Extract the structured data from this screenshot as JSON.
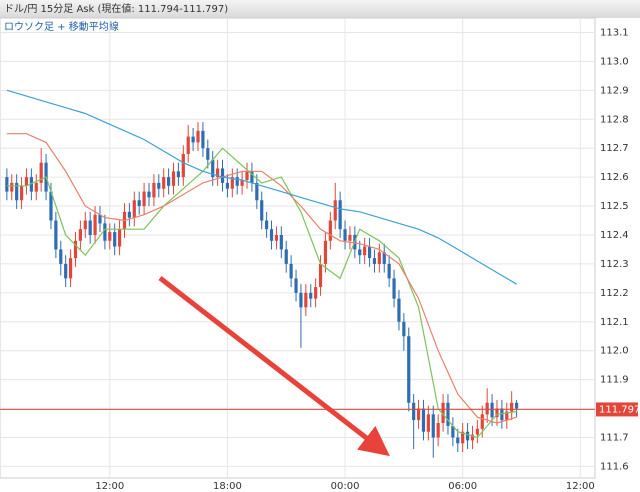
{
  "chart_data": {
    "type": "candlestick",
    "title": "ドル/円 15分足 Ask (現在値: 111.794-111.797)",
    "subtitle": "ロウソク足 + 移動平均線",
    "up_color": "#e0473a",
    "down_color": "#2e6db4",
    "xlim": [
      6.4,
      36.75
    ],
    "xticks": [
      {
        "value": 12,
        "label": "12:00"
      },
      {
        "value": 18,
        "label": "18:00"
      },
      {
        "value": 24,
        "label": "00:00"
      },
      {
        "value": 30,
        "label": "06:00"
      },
      {
        "value": 36,
        "label": "12:00"
      }
    ],
    "ylim": [
      111.56,
      113.15
    ],
    "yticks": [
      113.1,
      {
        "value": 113.0,
        "label": "113.0"
      },
      112.9,
      112.8,
      112.7,
      112.6,
      112.5,
      112.4,
      112.3,
      112.2,
      112.1,
      {
        "value": 112.0,
        "label": "112.0"
      },
      111.9,
      111.8,
      111.7,
      111.6
    ],
    "grid": true,
    "current": 111.797,
    "current_color": "#e0473a",
    "x": [
      6.75,
      7,
      7.25,
      7.5,
      7.75,
      8,
      8.25,
      8.5,
      8.75,
      9,
      9.25,
      9.5,
      9.75,
      10,
      10.25,
      10.5,
      10.75,
      11,
      11.25,
      11.5,
      11.75,
      12,
      12.25,
      12.5,
      12.75,
      13,
      13.25,
      13.5,
      13.75,
      14,
      14.25,
      14.5,
      14.75,
      15,
      15.25,
      15.5,
      15.75,
      16,
      16.25,
      16.5,
      16.75,
      17,
      17.25,
      17.5,
      17.75,
      18,
      18.25,
      18.5,
      18.75,
      19,
      19.25,
      19.5,
      19.75,
      20,
      20.25,
      20.5,
      20.75,
      21,
      21.25,
      21.5,
      21.75,
      22,
      22.25,
      22.5,
      22.75,
      23,
      23.25,
      23.5,
      23.75,
      24,
      24.25,
      24.5,
      24.75,
      25,
      25.25,
      25.5,
      25.75,
      26,
      26.25,
      26.5,
      26.75,
      27,
      27.25,
      27.5,
      27.75,
      28,
      28.25,
      28.5,
      28.75,
      29,
      29.25,
      29.5,
      29.75,
      30,
      30.25,
      30.5,
      30.75,
      31,
      31.25,
      31.5,
      31.75,
      32,
      32.25,
      32.5,
      32.75
    ],
    "open": [
      112.6,
      112.55,
      112.58,
      112.52,
      112.57,
      112.6,
      112.55,
      112.58,
      112.65,
      112.55,
      112.45,
      112.35,
      112.3,
      112.25,
      112.32,
      112.38,
      112.42,
      112.45,
      112.4,
      112.47,
      112.44,
      112.38,
      112.41,
      112.36,
      112.42,
      112.48,
      112.46,
      112.52,
      112.5,
      112.55,
      112.53,
      112.58,
      112.56,
      112.6,
      112.57,
      112.62,
      112.6,
      112.68,
      112.74,
      112.72,
      112.76,
      112.7,
      112.66,
      112.6,
      112.63,
      112.58,
      112.56,
      112.6,
      112.57,
      112.59,
      112.62,
      112.58,
      112.52,
      112.45,
      112.42,
      112.38,
      112.4,
      112.35,
      112.3,
      112.25,
      112.2,
      112.15,
      112.2,
      112.18,
      112.22,
      112.3,
      112.38,
      112.45,
      112.52,
      112.42,
      112.38,
      112.4,
      112.35,
      112.33,
      112.36,
      112.32,
      112.3,
      112.34,
      112.3,
      112.25,
      112.18,
      112.1,
      112.05,
      111.82,
      111.76,
      111.8,
      111.72,
      111.78,
      111.7,
      111.75,
      111.82,
      111.74,
      111.7,
      111.68,
      111.72,
      111.69,
      111.71,
      111.73,
      111.78,
      111.82,
      111.77,
      111.8,
      111.76,
      111.79,
      111.82
    ],
    "high": [
      112.63,
      112.61,
      112.61,
      112.6,
      112.63,
      112.63,
      112.61,
      112.7,
      112.68,
      112.58,
      112.48,
      112.38,
      112.33,
      112.35,
      112.41,
      112.45,
      112.48,
      112.48,
      112.5,
      112.5,
      112.47,
      112.44,
      112.44,
      112.45,
      112.51,
      112.51,
      112.55,
      112.55,
      112.58,
      112.58,
      112.61,
      112.61,
      112.63,
      112.63,
      112.65,
      112.65,
      112.71,
      112.78,
      112.77,
      112.79,
      112.79,
      112.73,
      112.69,
      112.66,
      112.66,
      112.61,
      112.63,
      112.63,
      112.62,
      112.65,
      112.65,
      112.61,
      112.55,
      112.48,
      112.45,
      112.43,
      112.43,
      112.38,
      112.33,
      112.28,
      112.23,
      112.23,
      112.23,
      112.25,
      112.33,
      112.41,
      112.48,
      112.58,
      112.55,
      112.45,
      112.43,
      112.43,
      112.38,
      112.39,
      112.39,
      112.35,
      112.37,
      112.37,
      112.33,
      112.28,
      112.21,
      112.13,
      112.08,
      111.85,
      111.83,
      111.83,
      111.81,
      111.81,
      111.78,
      111.85,
      111.85,
      111.77,
      111.73,
      111.75,
      111.75,
      111.74,
      111.76,
      111.81,
      111.87,
      111.85,
      111.83,
      111.83,
      111.82,
      111.86,
      111.83
    ],
    "low": [
      112.52,
      112.52,
      112.49,
      112.49,
      112.54,
      112.52,
      112.52,
      112.55,
      112.52,
      112.42,
      112.32,
      112.26,
      112.22,
      112.22,
      112.29,
      112.35,
      112.39,
      112.37,
      112.37,
      112.41,
      112.35,
      112.35,
      112.33,
      112.33,
      112.39,
      112.43,
      112.43,
      112.47,
      112.47,
      112.5,
      112.5,
      112.53,
      112.53,
      112.54,
      112.54,
      112.57,
      112.57,
      112.65,
      112.69,
      112.69,
      112.67,
      112.63,
      112.57,
      112.57,
      112.55,
      112.53,
      112.53,
      112.54,
      112.54,
      112.56,
      112.55,
      112.49,
      112.42,
      112.39,
      112.35,
      112.35,
      112.32,
      112.27,
      112.22,
      112.17,
      112.01,
      112.12,
      112.15,
      112.15,
      112.19,
      112.27,
      112.35,
      112.42,
      112.39,
      112.35,
      112.35,
      112.32,
      112.3,
      112.3,
      112.29,
      112.27,
      112.27,
      112.27,
      112.22,
      112.15,
      112.07,
      112.0,
      111.79,
      111.66,
      111.73,
      111.69,
      111.69,
      111.63,
      111.67,
      111.72,
      111.71,
      111.67,
      111.65,
      111.65,
      111.66,
      111.66,
      111.68,
      111.7,
      111.75,
      111.74,
      111.74,
      111.73,
      111.73,
      111.76,
      111.77
    ],
    "close": [
      112.55,
      112.58,
      112.52,
      112.57,
      112.6,
      112.55,
      112.58,
      112.65,
      112.55,
      112.45,
      112.35,
      112.3,
      112.25,
      112.32,
      112.38,
      112.42,
      112.45,
      112.4,
      112.47,
      112.44,
      112.38,
      112.41,
      112.36,
      112.42,
      112.48,
      112.46,
      112.52,
      112.5,
      112.55,
      112.53,
      112.58,
      112.56,
      112.6,
      112.57,
      112.62,
      112.6,
      112.68,
      112.74,
      112.72,
      112.76,
      112.7,
      112.66,
      112.6,
      112.63,
      112.58,
      112.56,
      112.6,
      112.57,
      112.59,
      112.62,
      112.58,
      112.52,
      112.45,
      112.42,
      112.38,
      112.4,
      112.35,
      112.3,
      112.25,
      112.2,
      112.15,
      112.2,
      112.18,
      112.22,
      112.3,
      112.38,
      112.45,
      112.52,
      112.42,
      112.38,
      112.4,
      112.35,
      112.33,
      112.36,
      112.32,
      112.3,
      112.34,
      112.3,
      112.25,
      112.18,
      112.1,
      112.05,
      111.82,
      111.76,
      111.8,
      111.72,
      111.78,
      111.7,
      111.75,
      111.82,
      111.74,
      111.7,
      111.68,
      111.72,
      111.69,
      111.71,
      111.73,
      111.78,
      111.82,
      111.77,
      111.8,
      111.76,
      111.79,
      111.82,
      111.8
    ],
    "ma_x": [
      6.75,
      7.75,
      8.75,
      9.75,
      10.75,
      11.75,
      12.75,
      13.75,
      14.75,
      15.75,
      16.75,
      17.75,
      18.75,
      19.75,
      20.75,
      21.75,
      22.75,
      23.75,
      24.75,
      25.75,
      26.75,
      27.75,
      28.75,
      29.75,
      30.75,
      31.75,
      32.75
    ],
    "lines": [
      {
        "color": "#7dc35b",
        "values": [
          112.57,
          112.57,
          112.6,
          112.4,
          112.33,
          112.42,
          112.42,
          112.42,
          112.5,
          112.56,
          112.62,
          112.7,
          112.64,
          112.58,
          112.6,
          112.48,
          112.3,
          112.25,
          112.42,
          112.38,
          112.32,
          112.15,
          111.8,
          111.72,
          111.7,
          111.78,
          111.79
        ]
      },
      {
        "color": "#e8806b",
        "values": [
          112.75,
          112.75,
          112.72,
          112.62,
          112.5,
          112.46,
          112.45,
          112.47,
          112.5,
          112.54,
          112.58,
          112.6,
          112.62,
          112.62,
          112.57,
          112.5,
          112.42,
          112.38,
          112.37,
          112.35,
          112.3,
          112.18,
          112.0,
          111.85,
          111.77,
          111.75,
          111.77
        ]
      },
      {
        "color": "#3aa3d8",
        "values": [
          112.9,
          112.88,
          112.86,
          112.84,
          112.82,
          112.79,
          112.76,
          112.73,
          112.69,
          112.65,
          112.62,
          112.6,
          112.59,
          112.57,
          112.55,
          112.53,
          112.51,
          112.49,
          112.48,
          112.46,
          112.44,
          112.42,
          112.39,
          112.35,
          112.31,
          112.27,
          112.23
        ]
      }
    ]
  }
}
